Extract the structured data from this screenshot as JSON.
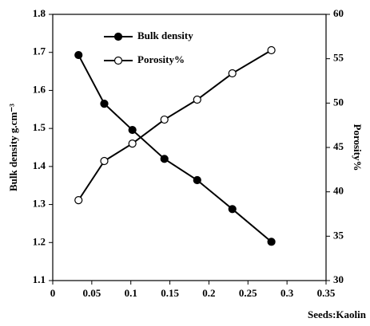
{
  "chart_data": {
    "type": "line",
    "x_label": "Seeds:Kaolin",
    "y_label": "Bulk density g.cm⁻³",
    "y2_label": "Porosity%",
    "xlim": [
      0,
      0.35
    ],
    "xticks": [
      0,
      0.05,
      0.1,
      0.15,
      0.2,
      0.25,
      0.3,
      0.35
    ],
    "ylim": [
      1.1,
      1.8
    ],
    "yticks": [
      1.1,
      1.2,
      1.3,
      1.4,
      1.5,
      1.6,
      1.7,
      1.8
    ],
    "y2lim": [
      30,
      60
    ],
    "y2ticks": [
      30,
      35,
      40,
      45,
      50,
      55,
      60
    ],
    "series": [
      {
        "name": "Bulk density",
        "color": "#000000",
        "marker_fill": "#000000",
        "x": [
          0.033,
          0.066,
          0.102,
          0.143,
          0.185,
          0.23,
          0.28
        ],
        "values": [
          1.693,
          1.565,
          1.496,
          1.42,
          1.364,
          1.288,
          1.202
        ]
      },
      {
        "name": "Porosity%",
        "color": "#000000",
        "marker_fill": "#ffffff",
        "axis": "y2",
        "x": [
          0.033,
          0.066,
          0.102,
          0.143,
          0.185,
          0.23,
          0.28
        ],
        "values": [
          39.06,
          43.47,
          45.44,
          48.14,
          50.39,
          53.35,
          55.96
        ]
      }
    ]
  }
}
